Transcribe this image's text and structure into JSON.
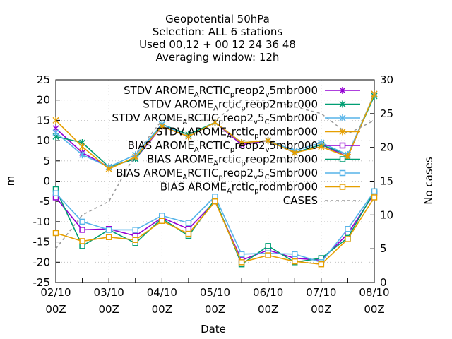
{
  "chart_data": {
    "type": "line",
    "title": [
      "Geopotential 50hPa",
      "Selection: ALL       6 stations",
      "Used  00,12  + 00 12 24 36 48",
      "Averaging window: 12h"
    ],
    "xlabel": "Date",
    "ylabel": "m",
    "y2label": "No cases",
    "xlim": [
      0,
      12
    ],
    "ylim": [
      -25,
      25
    ],
    "y2lim": [
      0,
      30
    ],
    "x_tick_labels": [
      [
        "02/10",
        "00Z"
      ],
      [
        "03/10",
        "00Z"
      ],
      [
        "04/10",
        "00Z"
      ],
      [
        "05/10",
        "00Z"
      ],
      [
        "06/10",
        "00Z"
      ],
      [
        "07/10",
        "00Z"
      ],
      [
        "08/10",
        "00Z"
      ]
    ],
    "y_ticks": [
      -25,
      -20,
      -15,
      -10,
      -5,
      0,
      5,
      10,
      15,
      20,
      25
    ],
    "y2_ticks": [
      0,
      5,
      10,
      15,
      20,
      25,
      30
    ],
    "x": [
      0,
      1,
      2,
      3,
      4,
      5,
      6,
      7,
      8,
      9,
      10,
      11,
      12
    ],
    "legend_position": "top-right",
    "series": [
      {
        "name_parts": [
          "STDV AROME",
          "A",
          "RCTIC",
          "p",
          "reop2",
          "v",
          "5mbr000"
        ],
        "color": "#9400d3",
        "marker": "x",
        "axis": "y",
        "values": [
          13,
          7,
          3.5,
          5.5,
          13.5,
          11,
          14.5,
          9,
          10,
          7,
          9,
          6,
          21.5
        ]
      },
      {
        "name_parts": [
          "STDV AROME",
          "A",
          "rctic",
          "p",
          "reop2mbr000"
        ],
        "color": "#009e73",
        "marker": "x",
        "axis": "y",
        "values": [
          11,
          9.5,
          3.5,
          5.5,
          14,
          11.5,
          14.5,
          9.5,
          10,
          7,
          9,
          6.5,
          21
        ]
      },
      {
        "name_parts": [
          "STDV AROME",
          "A",
          "RCTIC",
          "p",
          "reop2",
          "v",
          "5",
          "C",
          "Smbr000"
        ],
        "color": "#56b4e9",
        "marker": "x",
        "axis": "y",
        "values": [
          12,
          6.5,
          3.5,
          6.5,
          14,
          11,
          14.5,
          9.5,
          10,
          7.5,
          9.5,
          6.5,
          21.5
        ]
      },
      {
        "name_parts": [
          "STDV AROME",
          "A",
          "rctic",
          "p",
          "rodmbr000"
        ],
        "color": "#e69f00",
        "marker": "x",
        "axis": "y",
        "values": [
          15,
          8.5,
          3,
          6,
          13.5,
          11,
          14.5,
          9.5,
          10,
          7,
          8.5,
          6,
          21.5
        ]
      },
      {
        "name_parts": [
          "BIAS AROME",
          "A",
          "RCTIC",
          "p",
          "reop2",
          "v",
          "5mbr000"
        ],
        "color": "#9400d3",
        "marker": "square",
        "axis": "y",
        "values": [
          -4,
          -12,
          -11.8,
          -13.5,
          -9,
          -11.8,
          -5,
          -19.5,
          -17,
          -19,
          -19.5,
          -13,
          -3
        ]
      },
      {
        "name_parts": [
          "BIAS AROME",
          "A",
          "rctic",
          "p",
          "reop2mbr000"
        ],
        "color": "#009e73",
        "marker": "square",
        "axis": "y",
        "values": [
          -2,
          -16,
          -12,
          -15.3,
          -9.2,
          -13.5,
          -4.5,
          -20.5,
          -16,
          -20,
          -19,
          -14,
          -2.5
        ]
      },
      {
        "name_parts": [
          "BIAS AROME",
          "A",
          "RCTIC",
          "p",
          "reop2",
          "v",
          "5",
          "C",
          "Smbr000"
        ],
        "color": "#56b4e9",
        "marker": "square",
        "axis": "y",
        "values": [
          -3,
          -10,
          -12,
          -12,
          -8.5,
          -10.3,
          -3.8,
          -18,
          -17.8,
          -18,
          -20,
          -11.8,
          -2.5
        ]
      },
      {
        "name_parts": [
          "BIAS AROME",
          "A",
          "rctic",
          "p",
          "rodmbr000"
        ],
        "color": "#e69f00",
        "marker": "square",
        "axis": "y",
        "values": [
          -12.8,
          -14.8,
          -13.8,
          -14.5,
          -9.8,
          -13,
          -5,
          -20,
          -18.3,
          -19.8,
          -20.5,
          -14.3,
          -4
        ]
      },
      {
        "name_parts": [
          "CASES"
        ],
        "color": "#999999",
        "marker": "none",
        "dashed": true,
        "axis": "y2",
        "values": [
          5,
          10,
          12,
          19,
          24,
          24,
          24,
          27,
          27,
          26,
          25,
          22,
          24
        ]
      }
    ]
  }
}
